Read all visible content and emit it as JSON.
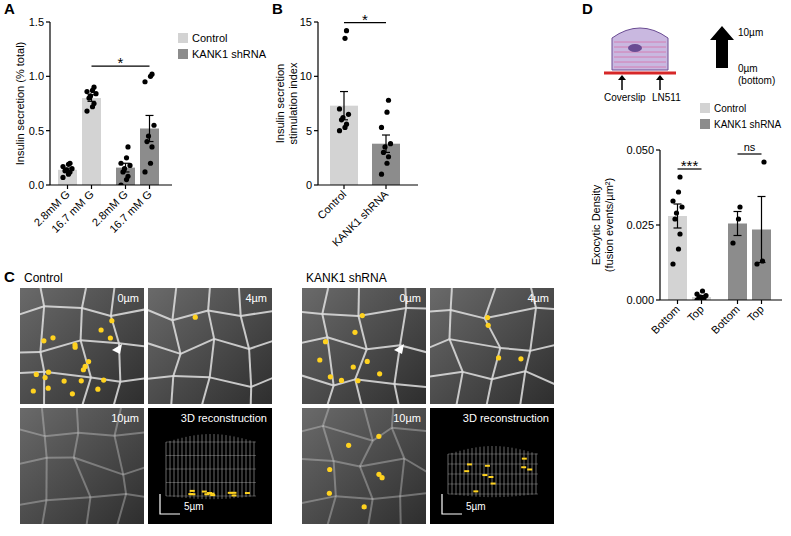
{
  "chart_data": [
    {
      "panel": "A",
      "type": "bar",
      "ylabel": "Insulin secretion (% total)",
      "categories": [
        "2.8mM G",
        "16.7 mM G",
        "2.8mM G",
        "16.7 mM G"
      ],
      "series": [
        {
          "name": "Control",
          "color": "#d3d3d3",
          "values": [
            0.14,
            0.8,
            null,
            null
          ],
          "errors": [
            0.015,
            0.03,
            null,
            null
          ],
          "points": [
            [
              0.07,
              0.1,
              0.12,
              0.13,
              0.14,
              0.15,
              0.17,
              0.19,
              0.2
            ],
            [
              0.68,
              0.72,
              0.75,
              0.8,
              0.82,
              0.84,
              0.86,
              0.87,
              0.9
            ],
            null,
            null
          ]
        },
        {
          "name": "KANK1 shRNA",
          "color": "#8c8c8c",
          "values": [
            null,
            null,
            0.16,
            0.52
          ],
          "errors": [
            null,
            null,
            0.04,
            0.12
          ],
          "points": [
            null,
            null,
            [
              0.0,
              0.05,
              0.08,
              0.12,
              0.15,
              0.18,
              0.2,
              0.25,
              0.35
            ],
            [
              0.12,
              0.2,
              0.35,
              0.4,
              0.45,
              0.55,
              0.95,
              1.0,
              1.02
            ]
          ]
        }
      ],
      "ylim": [
        0,
        1.5
      ],
      "yticks": [
        {
          "value": 0,
          "label": "0.0"
        },
        0.5,
        {
          "value": 1,
          "label": "1.0"
        },
        1.5
      ],
      "legend": "right",
      "annotations": [
        {
          "text": "*",
          "between": [
            1,
            3
          ]
        }
      ]
    },
    {
      "panel": "B",
      "type": "bar",
      "ylabel": "Insulin secretion stimulation index",
      "categories": [
        "Control",
        "KANK1 shRNA"
      ],
      "values": [
        7.3,
        3.8
      ],
      "errors": [
        1.3,
        0.8
      ],
      "colors": [
        "#d3d3d3",
        "#8c8c8c"
      ],
      "points": [
        [
          5.0,
          5.3,
          5.6,
          6.0,
          6.2,
          6.5,
          7.0,
          13.5,
          14.2
        ],
        [
          1.0,
          2.0,
          2.6,
          3.0,
          3.5,
          3.8,
          5.3,
          6.7,
          7.8
        ]
      ],
      "ylim": [
        0,
        15
      ],
      "yticks": [
        0,
        5,
        10,
        15
      ],
      "annotations": [
        {
          "text": "*",
          "between": [
            0,
            1
          ]
        }
      ]
    },
    {
      "panel": "D",
      "type": "bar",
      "ylabel": [
        "Exocytic Density",
        "(fusion events/µm²)"
      ],
      "categories": [
        "Bottom",
        "Top",
        "Bottom",
        "Top"
      ],
      "series": [
        {
          "name": "Control",
          "color": "#d3d3d3",
          "values": [
            0.028,
            0.001,
            null,
            null
          ],
          "errors": [
            0.004,
            0.0005,
            null,
            null
          ],
          "points": [
            [
              0.012,
              0.017,
              0.022,
              0.027,
              0.029,
              0.031,
              0.033,
              0.036,
              0.041
            ],
            [
              0.0,
              0.0,
              0.0005,
              0.001,
              0.001,
              0.0015,
              0.002,
              0.003
            ],
            null,
            null
          ]
        },
        {
          "name": "KANK1 shRNA",
          "color": "#8c8c8c",
          "values": [
            null,
            null,
            0.0255,
            0.0235
          ],
          "errors": [
            null,
            null,
            0.004,
            0.011
          ],
          "points": [
            null,
            null,
            [
              0.019,
              0.027,
              0.031
            ],
            [
              0.012,
              0.013,
              0.046
            ]
          ]
        }
      ],
      "ylim": [
        0,
        0.05
      ],
      "yticks": [
        {
          "value": 0,
          "label": "0.000"
        },
        0.025,
        {
          "value": 0.05,
          "label": "0.050"
        }
      ],
      "legend": "top-right",
      "annotations": [
        {
          "text": "***",
          "between": [
            0,
            1
          ]
        },
        {
          "text": "ns",
          "between": [
            2,
            3
          ]
        }
      ],
      "schematic": {
        "top_label": "10µm",
        "bottom_label": [
          "0µm",
          "(bottom)"
        ],
        "coverslip": "Coverslip",
        "substrate": "LN511"
      }
    }
  ],
  "images": {
    "panel": "C",
    "groups": [
      {
        "title": "Control",
        "tiles": [
          "0µm",
          "4µm",
          "10µm",
          "3D reconstruction"
        ]
      },
      {
        "title": "KANK1 shRNA",
        "tiles": [
          "0µm",
          "4µm",
          "10µm",
          "3D reconstruction"
        ]
      }
    ],
    "scale_bar": "5µm"
  }
}
